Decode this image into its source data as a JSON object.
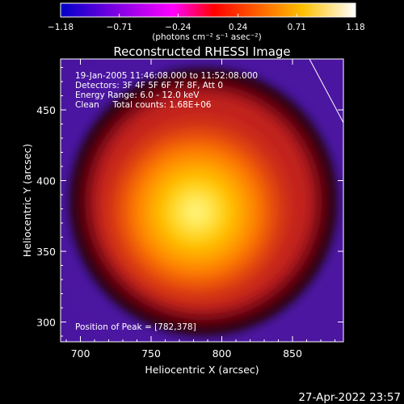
{
  "chart_data": {
    "type": "heatmap",
    "title": "Reconstructed RHESSI Image",
    "colorbar": {
      "min": -1.18,
      "max": 1.18,
      "tick_labels": [
        "−1.18",
        "−0.71",
        "−0.24",
        "0.24",
        "0.71",
        "1.18"
      ],
      "tick_values": [
        -1.18,
        -0.71,
        -0.24,
        0.24,
        0.71,
        1.18
      ],
      "unit_label": "(photons cm⁻² s⁻¹ asec⁻²)",
      "colors": [
        "#0000c8",
        "#ff00ff",
        "#ff0000",
        "#ffff80",
        "#ffffff"
      ]
    },
    "xlabel": "Heliocentric X (arcsec)",
    "ylabel": "Heliocentric Y (arcsec)",
    "xlim": [
      686,
      886
    ],
    "ylim": [
      286,
      486
    ],
    "xticks": [
      700,
      750,
      800,
      850
    ],
    "yticks": [
      300,
      350,
      400,
      450
    ],
    "info_lines": [
      "19-Jan-2005 11:46:08.000 to 11:52:08.000",
      "Detectors: 3F 4F 5F 6F 7F 8F, Att 0",
      "Energy Range: 6.0 - 12.0 keV",
      "Clean     Total counts: 1.68E+06"
    ],
    "peak_label": "Position of Peak = [782,378]",
    "peak": {
      "x": 782,
      "y": 378
    },
    "source": {
      "center_x": 787,
      "center_y": 385,
      "radius_arcsec": 90
    },
    "limb_line": {
      "x1": 862,
      "y1": 486,
      "x2": 886,
      "y2": 441
    }
  },
  "timestamp": "27-Apr-2022 23:57",
  "colors": {
    "background": "#000000",
    "text": "#ffffff"
  }
}
